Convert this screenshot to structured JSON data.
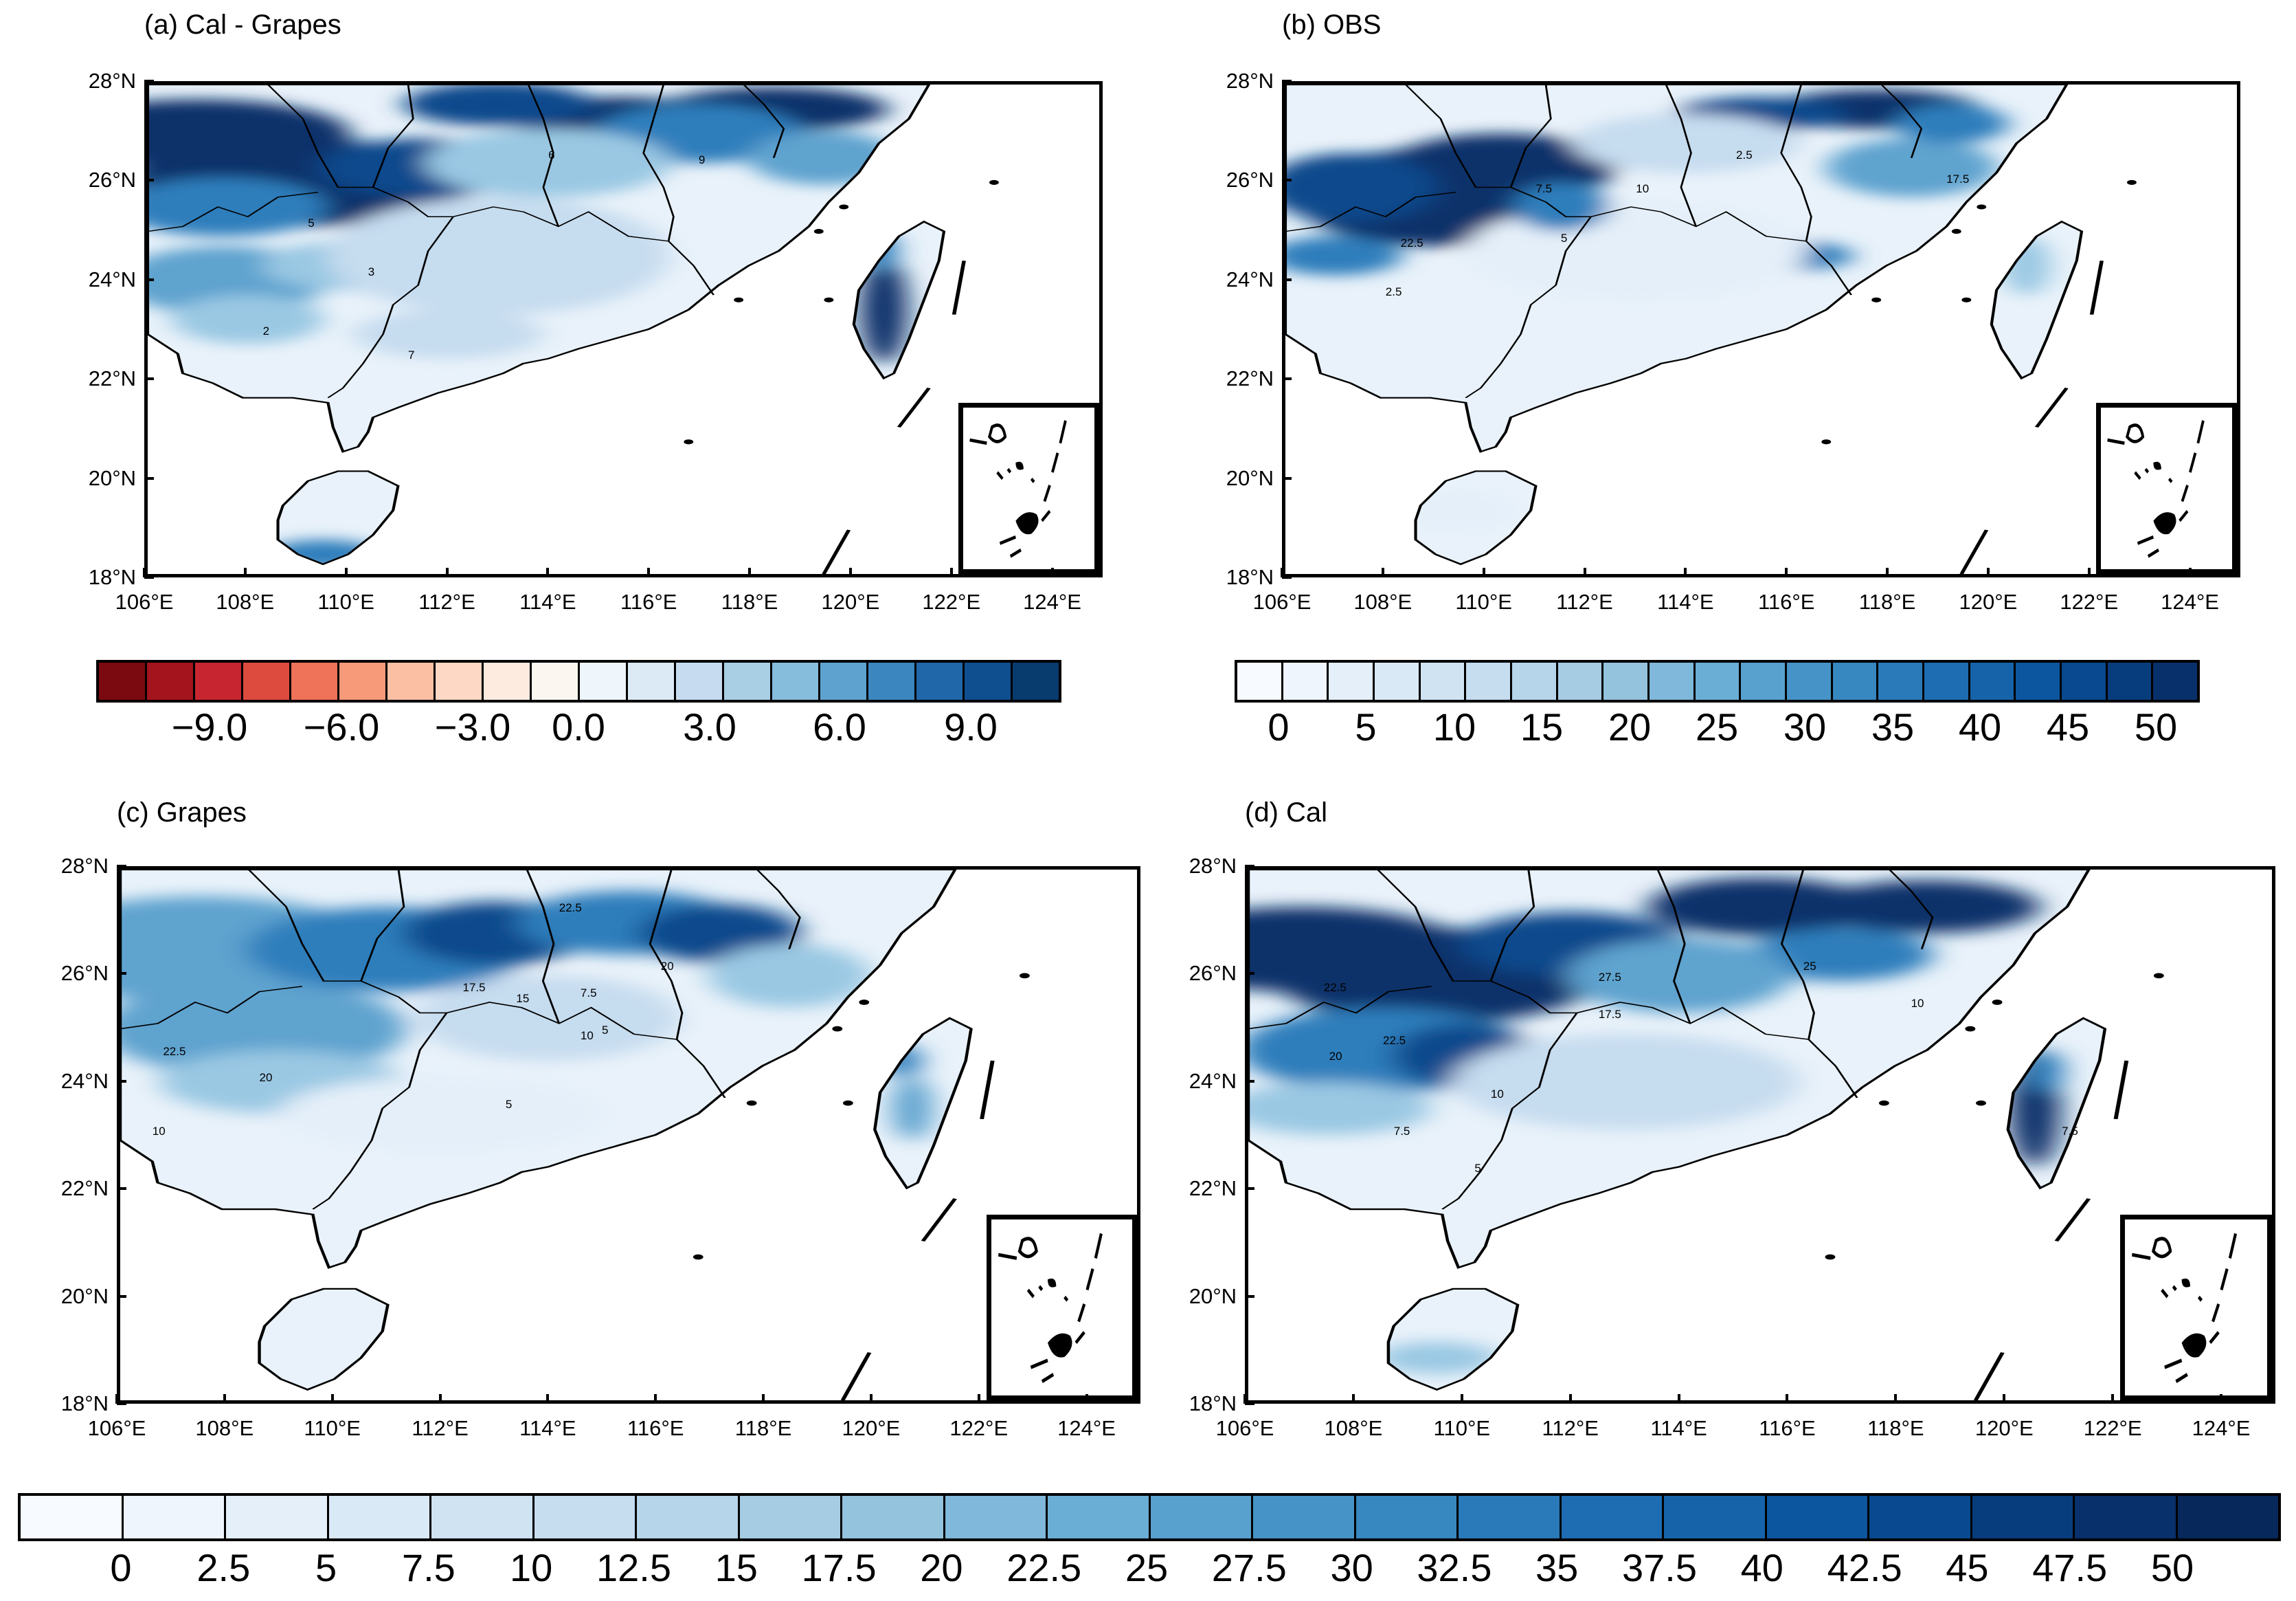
{
  "panels": [
    {
      "id": "a",
      "title": "(a) Cal - Grapes"
    },
    {
      "id": "b",
      "title": "(b) OBS"
    },
    {
      "id": "c",
      "title": "(c) Grapes"
    },
    {
      "id": "d",
      "title": "(d) Cal"
    }
  ],
  "lat_labels": [
    "28°N",
    "26°N",
    "24°N",
    "22°N",
    "20°N",
    "18°N"
  ],
  "lon_labels": [
    "106°E",
    "108°E",
    "110°E",
    "112°E",
    "114°E",
    "116°E",
    "118°E",
    "120°E",
    "122°E",
    "124°E"
  ],
  "colorbar_a": {
    "colors": [
      "#7a0a0f",
      "#a4141c",
      "#c72630",
      "#dd4b3f",
      "#ee7358",
      "#f69a7a",
      "#fbbfa3",
      "#fdd8c4",
      "#fdebe0",
      "#fcf6f0",
      "#eef5fb",
      "#dbeaf4",
      "#c6dbef",
      "#a9cfe5",
      "#86bcdc",
      "#5ea3cf",
      "#3b86bf",
      "#2067a9",
      "#0f4f90",
      "#083b6e"
    ],
    "labels": [
      "−9.0",
      "−6.0",
      "−3.0",
      "0.0",
      "3.0",
      "6.0",
      "9.0"
    ]
  },
  "colorbar_b": {
    "colors": [
      "#f7fbff",
      "#eef5fc",
      "#e4eff9",
      "#dae9f6",
      "#d0e3f3",
      "#c6dcef",
      "#b6d4ea",
      "#a6cce4",
      "#94c3de",
      "#7fb8da",
      "#6aaed6",
      "#58a1cf",
      "#4694c7",
      "#3787c0",
      "#2a7ab9",
      "#1e6db2",
      "#1663aa",
      "#0c56a0",
      "#08498f",
      "#083d7d",
      "#08306b"
    ],
    "labels": [
      "0",
      "5",
      "10",
      "15",
      "20",
      "25",
      "30",
      "35",
      "40",
      "45",
      "50"
    ]
  },
  "colorbar_cd": {
    "colors": [
      "#f7fbff",
      "#eef5fc",
      "#e4eff9",
      "#dae9f6",
      "#d0e3f3",
      "#c6dcef",
      "#b6d4ea",
      "#a6cce4",
      "#94c3de",
      "#7fb8da",
      "#6aaed6",
      "#58a1cf",
      "#4694c7",
      "#3787c0",
      "#2a7ab9",
      "#1e6db2",
      "#1663aa",
      "#0c56a0",
      "#08498f",
      "#083d7d",
      "#08306b",
      "#07285a"
    ],
    "labels": [
      "0",
      "2.5",
      "5",
      "7.5",
      "10",
      "12.5",
      "15",
      "17.5",
      "20",
      "22.5",
      "25",
      "27.5",
      "30",
      "32.5",
      "35",
      "37.5",
      "40",
      "42.5",
      "45",
      "47.5",
      "50"
    ]
  },
  "contour_labels": {
    "a": [
      "5",
      "3",
      "2",
      "7",
      "9",
      "6"
    ],
    "b": [
      "7.5",
      "10",
      "2.5",
      "17.5",
      "5",
      "22.5",
      "2.5"
    ],
    "c": [
      "22.5",
      "17.5",
      "15",
      "20",
      "5",
      "10",
      "20",
      "22.5",
      "7.5",
      "5",
      "10"
    ],
    "d": [
      "22.5",
      "20",
      "17.5",
      "22.5",
      "10",
      "7.5",
      "5",
      "25",
      "10",
      "7.5",
      "27.5"
    ]
  }
}
